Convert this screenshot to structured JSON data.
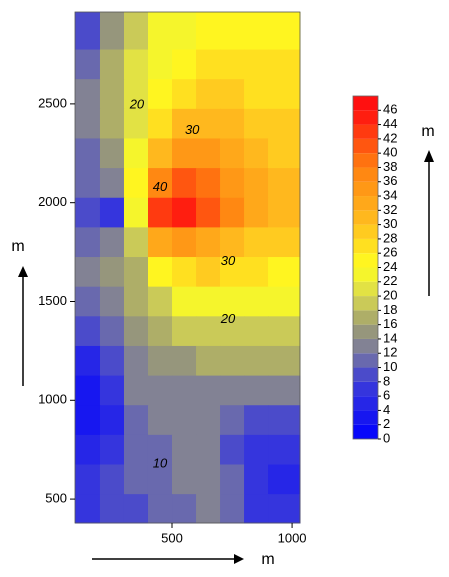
{
  "chart_data": {
    "type": "contour",
    "x": [
      150,
      250,
      350,
      450,
      550,
      650,
      750,
      850,
      950
    ],
    "y": [
      2850,
      2700,
      2550,
      2400,
      2250,
      2100,
      1950,
      1800,
      1650,
      1500,
      1350,
      1200,
      1050,
      900,
      750,
      600,
      450
    ],
    "z": [
      [
        9,
        15,
        19,
        22,
        23,
        24,
        25,
        25,
        25
      ],
      [
        11,
        16,
        20,
        23,
        25,
        26,
        26,
        26,
        26
      ],
      [
        12,
        16,
        20,
        24,
        27,
        28,
        28,
        27,
        27
      ],
      [
        12,
        16,
        21,
        26,
        30,
        31,
        30,
        29,
        28
      ],
      [
        11,
        15,
        22,
        30,
        34,
        34,
        33,
        31,
        29
      ],
      [
        10,
        12,
        24,
        37,
        41,
        39,
        35,
        32,
        30
      ],
      [
        9,
        6,
        22,
        42,
        45,
        40,
        36,
        32,
        30
      ],
      [
        11,
        12,
        18,
        32,
        34,
        33,
        31,
        29,
        28
      ],
      [
        12,
        14,
        17,
        24,
        27,
        28,
        27,
        26,
        25
      ],
      [
        10,
        13,
        16,
        19,
        22,
        23,
        23,
        23,
        22
      ],
      [
        8,
        11,
        14,
        16,
        18,
        19,
        19,
        19,
        19
      ],
      [
        5,
        9,
        13,
        14,
        15,
        16,
        16,
        16,
        16
      ],
      [
        3,
        6,
        12,
        13,
        13,
        13,
        13,
        12,
        12
      ],
      [
        2,
        5,
        11,
        12,
        12,
        12,
        10,
        9,
        8
      ],
      [
        4,
        7,
        10,
        11,
        12,
        12,
        9,
        7,
        6
      ],
      [
        6,
        8,
        10,
        11,
        12,
        13,
        10,
        7,
        5
      ],
      [
        7,
        8,
        9,
        10,
        11,
        12,
        10,
        7,
        6
      ]
    ],
    "xlim": [
      96,
      1033
    ],
    "ylim": [
      379,
      2965
    ],
    "xticks": [
      500,
      1000
    ],
    "yticks": [
      500,
      1000,
      1500,
      2000,
      2500
    ],
    "x_label": "m",
    "y_label": "m",
    "colorbar_label": "m",
    "zlim": [
      0,
      48
    ],
    "colorbar_ticks": [
      0,
      2,
      4,
      6,
      8,
      10,
      12,
      14,
      16,
      18,
      20,
      22,
      24,
      26,
      28,
      30,
      32,
      34,
      36,
      38,
      40,
      42,
      44,
      46
    ],
    "colorscale": [
      [
        0,
        "#0000ff"
      ],
      [
        8,
        "#3c3cd8"
      ],
      [
        12,
        "#7878a0"
      ],
      [
        16,
        "#a0a070"
      ],
      [
        20,
        "#d8d850"
      ],
      [
        24,
        "#ffff20"
      ],
      [
        30,
        "#ffc020"
      ],
      [
        38,
        "#ff8010"
      ],
      [
        46,
        "#ff1010"
      ]
    ],
    "contour_labels": [
      {
        "value": 20,
        "x": 354,
        "y": 2495
      },
      {
        "value": 30,
        "x": 584,
        "y": 2364
      },
      {
        "value": 40,
        "x": 450,
        "y": 2076
      },
      {
        "value": 30,
        "x": 733,
        "y": 1702
      },
      {
        "value": 20,
        "x": 733,
        "y": 1409
      },
      {
        "value": 10,
        "x": 450,
        "y": 677
      }
    ]
  }
}
